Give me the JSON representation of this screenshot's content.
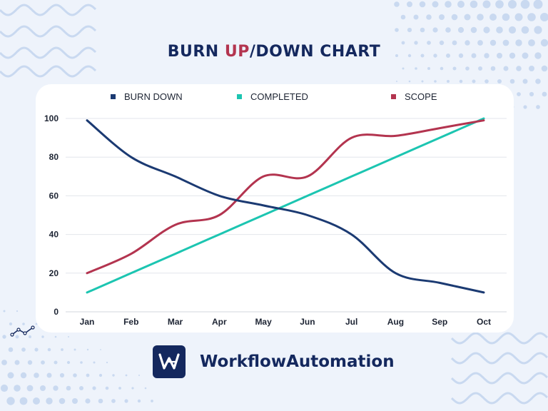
{
  "page": {
    "title_part1": "BURN ",
    "title_highlight": "UP",
    "title_part2": "/DOWN CHART",
    "brand_name": "WorkflowAutomation",
    "brand_icon": "workflow-logo-icon",
    "colors": {
      "background": "#eef3fb",
      "navy": "#14285e",
      "accent": "#b3344f",
      "decor": "#c9d9f0"
    }
  },
  "chart_data": {
    "type": "line",
    "categories": [
      "Jan",
      "Feb",
      "Mar",
      "Apr",
      "May",
      "Jun",
      "Jul",
      "Aug",
      "Sep",
      "Oct"
    ],
    "ylim": [
      0,
      100
    ],
    "yticks": [
      0,
      20,
      40,
      60,
      80,
      100
    ],
    "grid": true,
    "legend_position": "top",
    "series": [
      {
        "name": "BURN DOWN",
        "color": "#1b3a72",
        "values": [
          99,
          80,
          70,
          60,
          55,
          50,
          40,
          20,
          15,
          10
        ]
      },
      {
        "name": "COMPLETED",
        "color": "#1cc5b1",
        "values": [
          10,
          20,
          30,
          40,
          50,
          60,
          70,
          80,
          90,
          100
        ]
      },
      {
        "name": "SCOPE",
        "color": "#b3344f",
        "values": [
          20,
          30,
          45,
          50,
          70,
          70,
          90,
          91,
          95,
          99
        ]
      }
    ]
  }
}
